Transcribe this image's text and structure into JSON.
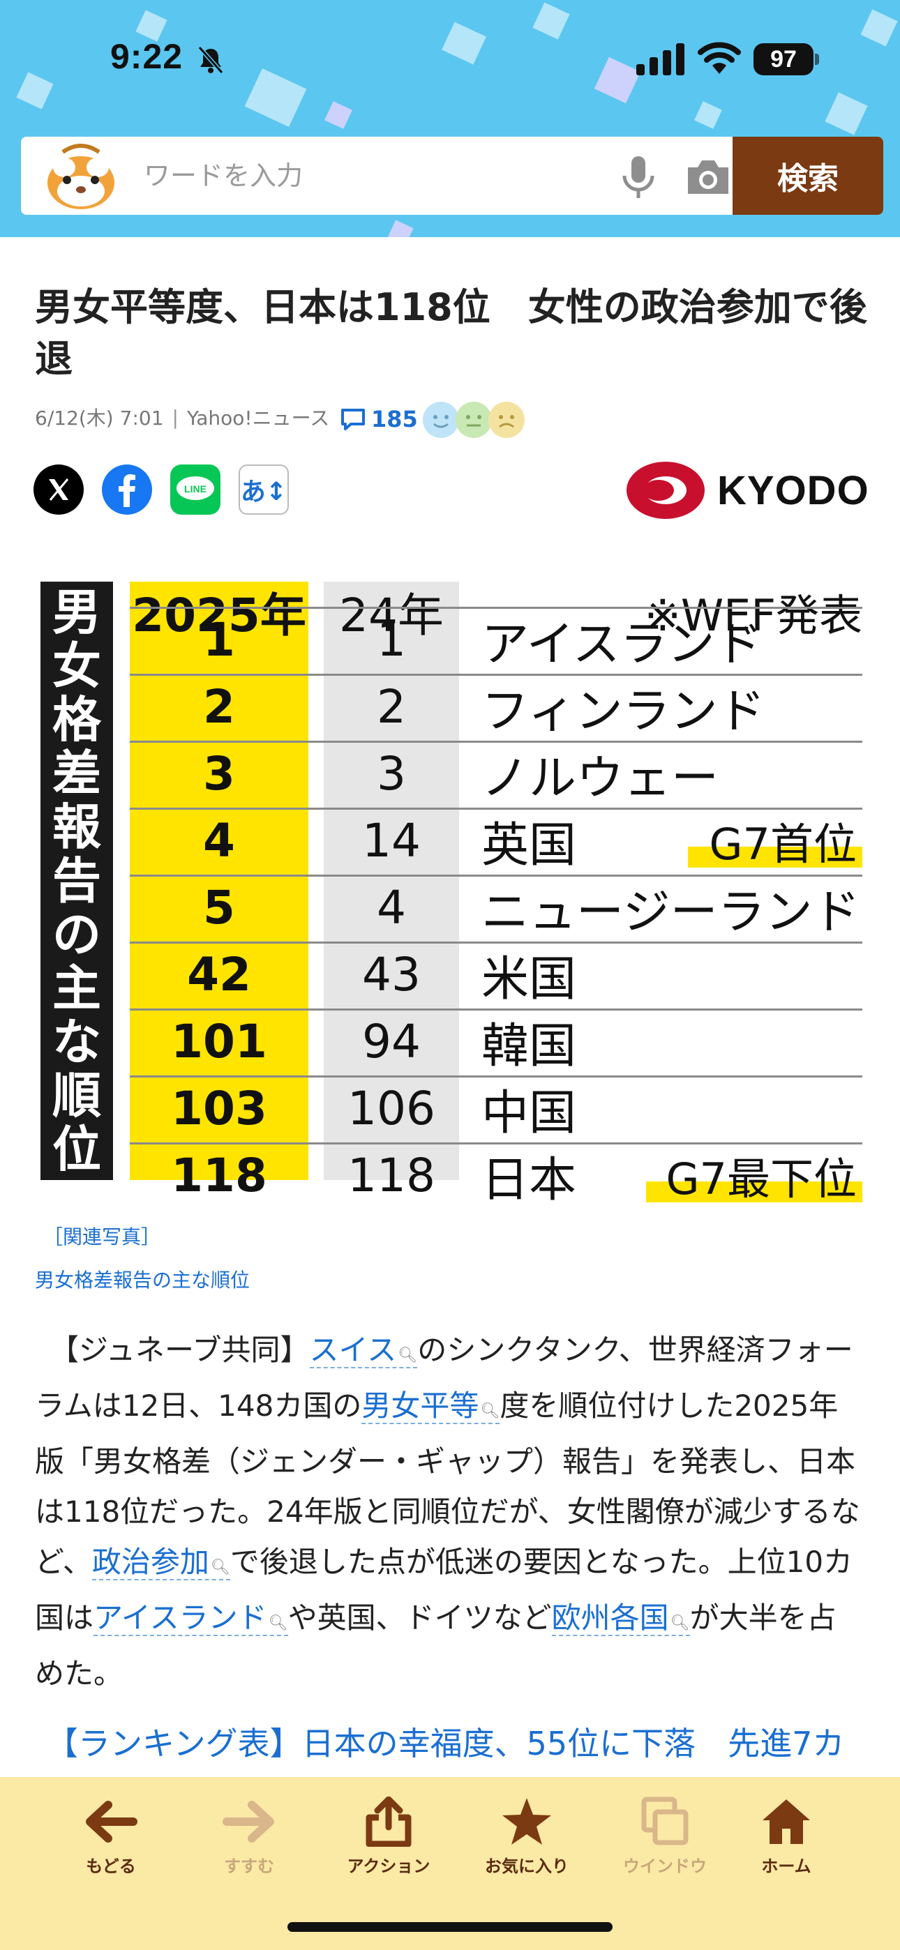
{
  "status_bar": {
    "time": "9:22",
    "battery": "97"
  },
  "search": {
    "placeholder": "ワードを入力",
    "button_label": "検索"
  },
  "article": {
    "title": "男女平等度、日本は118位　女性の政治参加で後退",
    "date": "6/12(木) 7:01",
    "source": "Yahoo!ニュース",
    "comment_count": "185",
    "publisher_logo": "KYODO",
    "font_size_label": "あ↕",
    "image": {
      "side_title": "男女格差報告の主な順位",
      "header_2025": "2025年",
      "header_2024": "24年",
      "note": "※WEF発表",
      "rows": [
        {
          "rank_2025": "1",
          "rank_2024": "1",
          "country": "アイスランド",
          "tag": ""
        },
        {
          "rank_2025": "2",
          "rank_2024": "2",
          "country": "フィンランド",
          "tag": ""
        },
        {
          "rank_2025": "3",
          "rank_2024": "3",
          "country": "ノルウェー",
          "tag": ""
        },
        {
          "rank_2025": "4",
          "rank_2024": "14",
          "country": "英国",
          "tag": "G7首位"
        },
        {
          "rank_2025": "5",
          "rank_2024": "4",
          "country": "ニュージーランド",
          "tag": ""
        },
        {
          "rank_2025": "42",
          "rank_2024": "43",
          "country": "米国",
          "tag": ""
        },
        {
          "rank_2025": "101",
          "rank_2024": "94",
          "country": "韓国",
          "tag": ""
        },
        {
          "rank_2025": "103",
          "rank_2024": "106",
          "country": "中国",
          "tag": ""
        },
        {
          "rank_2025": "118",
          "rank_2024": "118",
          "country": "日本",
          "tag": "G7最下位"
        }
      ]
    },
    "photo_link": "［関連写真］",
    "caption": "男女格差報告の主な順位",
    "body": {
      "p1": "　【ジュネーブ共同】",
      "kw1": "スイス",
      "p2": "のシンクタンク、世界経済フォーラムは12日、148カ国の",
      "kw2": "男女平等",
      "p3": "度を順位付けした2025年版「男女格差（ジェンダー・ギャップ）報告」を発表し、日本は118位だった。24年版と同順位だが、女性閣僚が減少するなど、",
      "kw3": "政治参加",
      "p4": "で後退した点が低迷の要因となった。上位10カ国は",
      "kw4": "アイスランド",
      "p5": "や英国、ドイツなど",
      "kw5": "欧州各国",
      "p6": "が大半を占めた。"
    },
    "related_link": "【ランキング表】日本の幸福度、55位に下落　先進7カ"
  },
  "toolbar": {
    "back": "もどる",
    "forward": "すすむ",
    "action": "アクション",
    "favorite": "お気に入り",
    "window": "ウインドウ",
    "home": "ホーム"
  },
  "colors": {
    "header_bg": "#5bc6f0",
    "search_button": "#7b3a12",
    "link": "#1a6fd1",
    "toolbar_bg": "#fbe9a6",
    "highlight_yellow": "#ffe400"
  }
}
